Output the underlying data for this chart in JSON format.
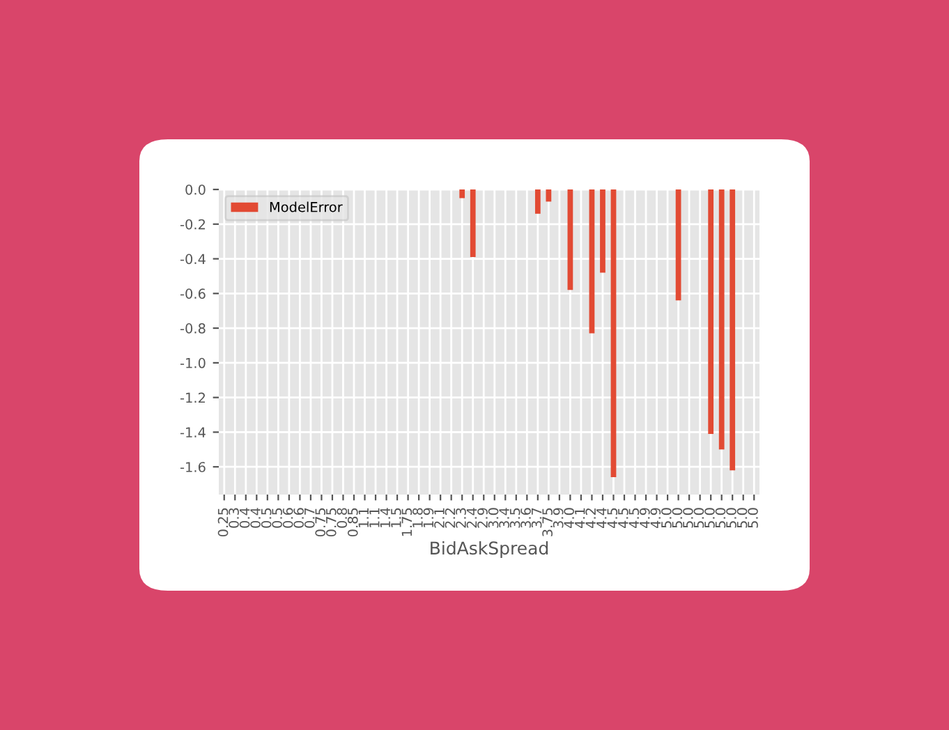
{
  "chart_data": {
    "type": "bar",
    "xlabel": "BidAskSpread",
    "categories": [
      "0.25",
      "0.3",
      "0.4",
      "0.4",
      "0.5",
      "0.5",
      "0.6",
      "0.6",
      "0.7",
      "0.75",
      "0.75",
      "0.8",
      "0.85",
      "1.1",
      "1.1",
      "1.4",
      "1.5",
      "1.75",
      "1.8",
      "1.9",
      "2.1",
      "2.2",
      "2.3",
      "2.4",
      "2.9",
      "3.0",
      "3.4",
      "3.5",
      "3.6",
      "3.7",
      "3.75",
      "3.9",
      "4.0",
      "4.1",
      "4.2",
      "4.4",
      "4.5",
      "4.5",
      "4.5",
      "4.9",
      "4.9",
      "5.0",
      "5.0",
      "5.0",
      "5.0",
      "5.0",
      "5.0",
      "5.0",
      "5.0",
      "5.0"
    ],
    "series": [
      {
        "name": "ModelError",
        "color": "#e24a33",
        "values": [
          null,
          null,
          null,
          null,
          null,
          null,
          null,
          null,
          null,
          null,
          null,
          null,
          null,
          null,
          null,
          null,
          null,
          null,
          null,
          null,
          null,
          null,
          -0.05,
          -0.39,
          null,
          null,
          null,
          null,
          null,
          -0.14,
          -0.07,
          null,
          -0.58,
          null,
          -0.83,
          -0.48,
          -1.66,
          null,
          null,
          null,
          null,
          null,
          -0.64,
          null,
          null,
          -1.41,
          -1.5,
          -1.62,
          null,
          null
        ]
      }
    ],
    "ylim": [
      -1.76,
      0
    ],
    "yticks": [
      {
        "value": 0,
        "label": "0.0"
      },
      {
        "value": -0.2,
        "label": "-0.2"
      },
      {
        "value": -0.4,
        "label": "-0.4"
      },
      {
        "value": -0.6,
        "label": "-0.6"
      },
      {
        "value": -0.8,
        "label": "-0.8"
      },
      {
        "value": -1.0,
        "label": "-1.0"
      },
      {
        "value": -1.2,
        "label": "-1.2"
      },
      {
        "value": -1.4,
        "label": "-1.4"
      },
      {
        "value": -1.6,
        "label": "-1.6"
      }
    ],
    "grid": true,
    "legend": "top left"
  }
}
